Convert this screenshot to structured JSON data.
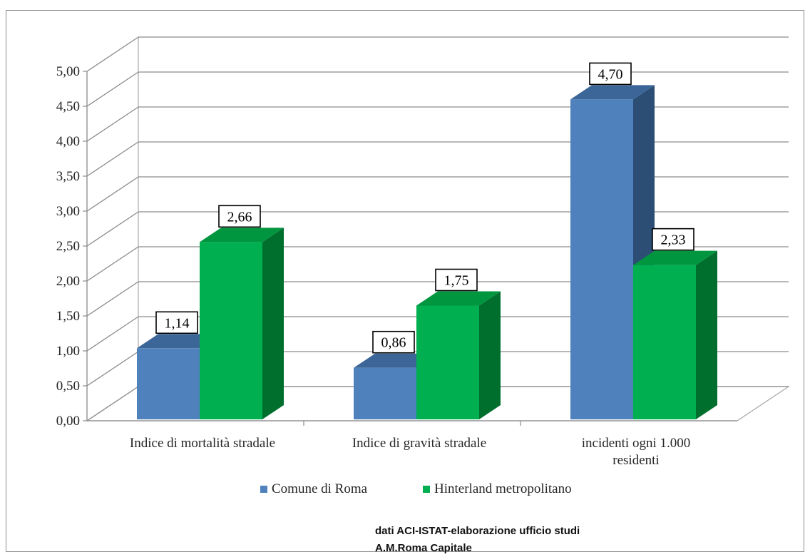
{
  "chart_data": {
    "type": "bar",
    "title": "",
    "xlabel": "",
    "ylabel": "",
    "categories": [
      [
        "Indice di mortalità stradale"
      ],
      [
        "Indice di gravità stradale"
      ],
      [
        "incidenti ogni 1.000",
        "residenti"
      ]
    ],
    "series": [
      {
        "name": "Comune di Roma",
        "values": [
          1.14,
          0.86,
          4.7
        ],
        "color": "#4f81bd",
        "top_color": "#3b6697",
        "side_color": "#2c4d74"
      },
      {
        "name": "Hinterland metropolitano",
        "values": [
          2.66,
          1.75,
          2.33
        ],
        "color": "#00b050",
        "top_color": "#00953f",
        "side_color": "#006f2e"
      }
    ],
    "data_labels": [
      [
        "1,14",
        "0,86",
        "4,70"
      ],
      [
        "2,66",
        "1,75",
        "2,33"
      ]
    ],
    "yticks": [
      "0,00",
      "0,50",
      "1,00",
      "1,50",
      "2,00",
      "2,50",
      "3,00",
      "3,50",
      "4,00",
      "4,50",
      "5,00"
    ],
    "ylim": [
      0,
      5
    ],
    "grid": true,
    "legend_position": "bottom",
    "style": "3d-clustered-column"
  },
  "source_note": {
    "line1": "dati ACI-ISTAT-elaborazione ufficio studi",
    "line2": "A.M.Roma Capitale"
  }
}
